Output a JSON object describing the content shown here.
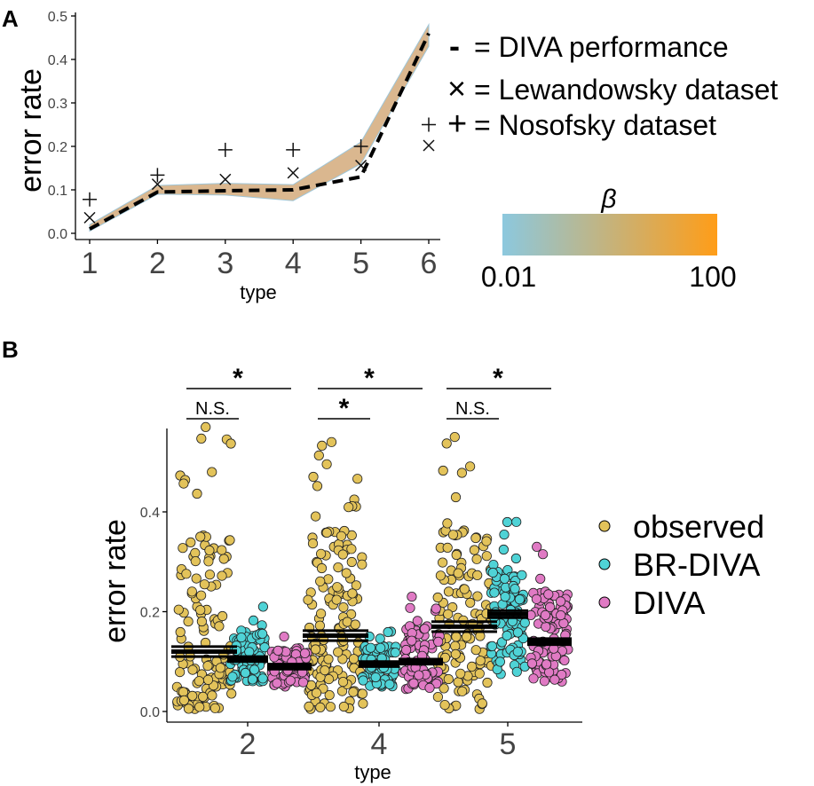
{
  "panel_a_label": "A",
  "panel_b_label": "B",
  "colorbar": {
    "title": "β",
    "min_label": "0.01",
    "max_label": "100",
    "colors": [
      "#8cc8de",
      "#ff9d18"
    ]
  },
  "legend_a": [
    {
      "symbol": "-",
      "text": "= DIVA performance"
    },
    {
      "symbol": "×",
      "text": "= Lewandowsky dataset"
    },
    {
      "symbol": "+",
      "text": "= Nosofsky dataset"
    }
  ],
  "legend_b": [
    {
      "label": "observed",
      "color": "#e3c35a"
    },
    {
      "label": "BR-DIVA",
      "color": "#4fd3d6"
    },
    {
      "label": "DIVA",
      "color": "#e07ac4"
    }
  ],
  "significance": {
    "groups": [
      {
        "type": "2",
        "brdiva_label": "N.S.",
        "diva_label": "*"
      },
      {
        "type": "4",
        "brdiva_label": "*",
        "diva_label": "*"
      },
      {
        "type": "5",
        "brdiva_label": "N.S.",
        "diva_label": "*"
      }
    ]
  },
  "chart_data": [
    {
      "panel": "A",
      "type": "line",
      "xlabel": "type",
      "ylabel": "error rate",
      "xlim": [
        1,
        6
      ],
      "ylim": [
        0,
        0.5
      ],
      "x_ticks": [
        "1",
        "2",
        "3",
        "4",
        "5",
        "6"
      ],
      "y_ticks": [
        "0.0",
        "0.1",
        "0.2",
        "0.3",
        "0.4",
        "0.5"
      ],
      "series": [
        {
          "name": "DIVA performance",
          "style": "dashed",
          "x": [
            1,
            2,
            3,
            4,
            5,
            6
          ],
          "values": [
            0.01,
            0.095,
            0.098,
            0.1,
            0.13,
            0.46
          ]
        },
        {
          "name": "beta band (lower)",
          "x": [
            1,
            2,
            3,
            4,
            5,
            6
          ],
          "values": [
            0.005,
            0.09,
            0.088,
            0.075,
            0.16,
            0.43
          ]
        },
        {
          "name": "beta band (upper)",
          "x": [
            1,
            2,
            3,
            4,
            5,
            6
          ],
          "values": [
            0.02,
            0.11,
            0.115,
            0.112,
            0.21,
            0.48
          ]
        },
        {
          "name": "Lewandowsky dataset",
          "marker": "×",
          "x": [
            1,
            2,
            3,
            4,
            5,
            6
          ],
          "values": [
            0.036,
            0.113,
            0.124,
            0.139,
            0.156,
            0.202
          ]
        },
        {
          "name": "Nosofsky dataset",
          "marker": "+",
          "x": [
            1,
            2,
            3,
            4,
            5,
            6
          ],
          "values": [
            0.078,
            0.134,
            0.192,
            0.192,
            0.2,
            0.25
          ]
        }
      ]
    },
    {
      "panel": "B",
      "type": "scatter",
      "xlabel": "type",
      "ylabel": "error rate",
      "ylim": [
        0,
        0.57
      ],
      "categories": [
        "2",
        "4",
        "5"
      ],
      "y_ticks": [
        "0.0",
        "0.2",
        "0.4"
      ],
      "series": [
        {
          "name": "observed",
          "means": [
            0.12,
            0.152,
            0.17
          ],
          "se": [
            0.01,
            0.01,
            0.01
          ],
          "n": [
            130,
            150,
            130
          ],
          "min": [
            0.005,
            0.005,
            0.005
          ],
          "max": [
            0.57,
            0.54,
            0.55
          ]
        },
        {
          "name": "BR-DIVA",
          "means": [
            0.105,
            0.095,
            0.195
          ],
          "se": [
            0.005,
            0.005,
            0.007
          ],
          "n": [
            80,
            80,
            100
          ],
          "min": [
            0.06,
            0.05,
            0.075
          ],
          "max": [
            0.21,
            0.16,
            0.38
          ]
        },
        {
          "name": "DIVA",
          "means": [
            0.09,
            0.1,
            0.14
          ],
          "se": [
            0.005,
            0.005,
            0.006
          ],
          "n": [
            80,
            80,
            100
          ],
          "min": [
            0.05,
            0.045,
            0.06
          ],
          "max": [
            0.15,
            0.23,
            0.33
          ]
        }
      ]
    }
  ]
}
